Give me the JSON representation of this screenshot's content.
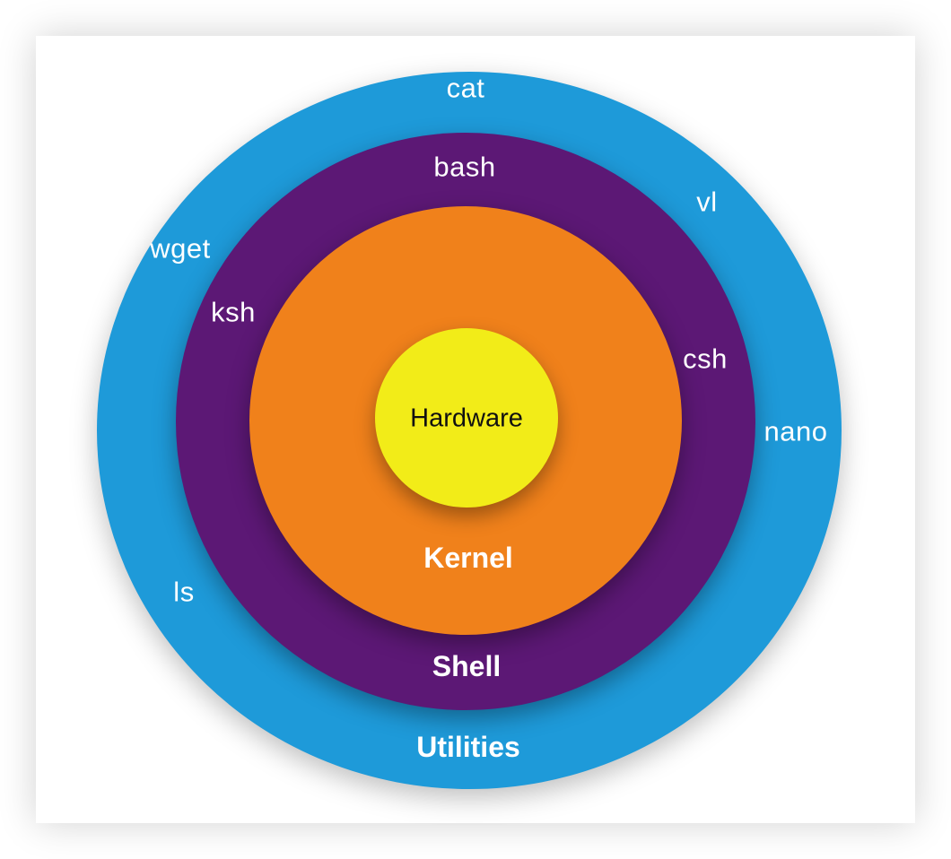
{
  "diagram": {
    "layers": {
      "utilities": {
        "label": "Utilities",
        "color": "#1e9ad9"
      },
      "shell": {
        "label": "Shell",
        "color": "#5c1875"
      },
      "kernel": {
        "label": "Kernel",
        "color": "#f0811b"
      },
      "hardware": {
        "label": "Hardware",
        "color": "#f2ec18"
      }
    },
    "utilities_items": {
      "cat": "cat",
      "vl": "vl",
      "wget": "wget",
      "nano": "nano",
      "ls": "ls"
    },
    "shell_items": {
      "bash": "bash",
      "ksh": "ksh",
      "csh": "csh"
    }
  }
}
